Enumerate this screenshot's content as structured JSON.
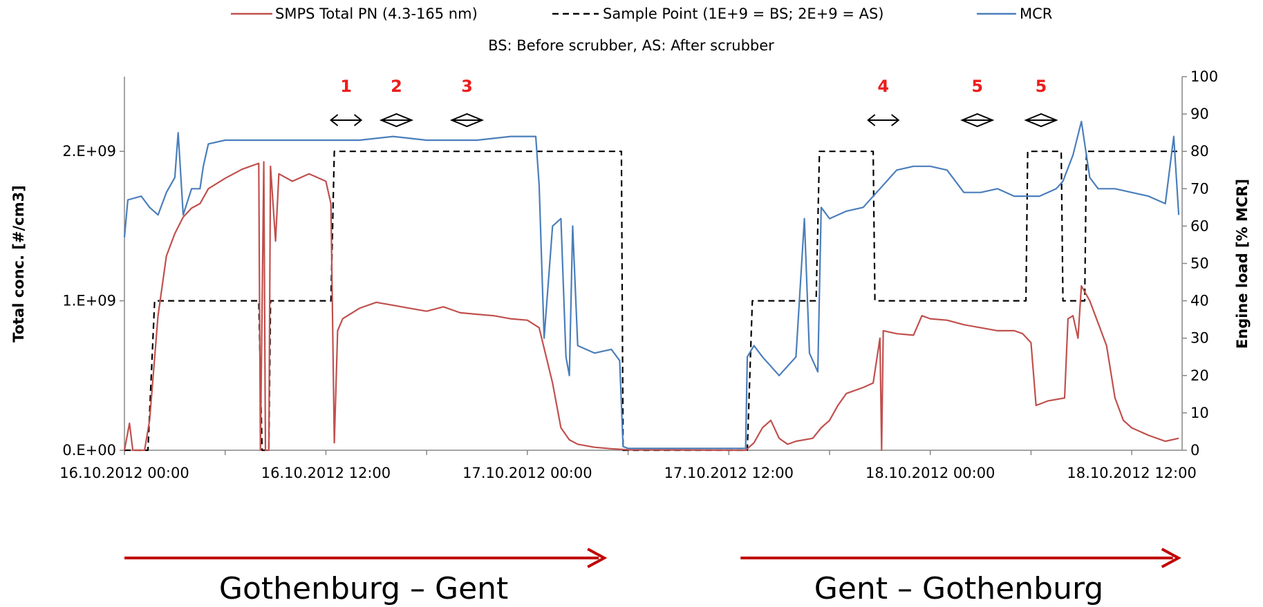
{
  "chart_data": {
    "type": "line",
    "legend": {
      "placement": "top",
      "entries": [
        {
          "label": "SMPS Total PN (4.3-165 nm)",
          "color": "#c0504d",
          "style": "solid"
        },
        {
          "label": "Sample Point (1E+9 = BS; 2E+9 = AS)",
          "color": "#000000",
          "style": "dashed"
        },
        {
          "label": "MCR",
          "color": "#4a7ebb",
          "style": "solid"
        }
      ],
      "note": "BS: Before scrubber, AS: After scrubber"
    },
    "x_axis": {
      "ticks": [
        "16.10.2012 00:00",
        "16.10.2012 12:00",
        "17.10.2012 00:00",
        "17.10.2012 12:00",
        "18.10.2012 00:00",
        "18.10.2012 12:00"
      ],
      "range_hours": [
        0,
        63
      ]
    },
    "y_left": {
      "label": "Total conc. [#/cm3]",
      "range": [
        0,
        2500000000
      ],
      "ticks": [
        {
          "value": 0,
          "label": "0.E+00"
        },
        {
          "value": 1000000000,
          "label": "1.E+09"
        },
        {
          "value": 2000000000,
          "label": "2.E+09"
        }
      ]
    },
    "y_right": {
      "label": "Engine load [% MCR]",
      "range": [
        0,
        100
      ],
      "ticks": [
        {
          "value": 0,
          "label": "0"
        },
        {
          "value": 10,
          "label": "10"
        },
        {
          "value": 20,
          "label": "20"
        },
        {
          "value": 30,
          "label": "30"
        },
        {
          "value": 40,
          "label": "40"
        },
        {
          "value": 50,
          "label": "50"
        },
        {
          "value": 60,
          "label": "60"
        },
        {
          "value": 70,
          "label": "70"
        },
        {
          "value": 80,
          "label": "80"
        },
        {
          "value": 90,
          "label": "90"
        },
        {
          "value": 100,
          "label": "100"
        }
      ]
    },
    "grid": false,
    "series": [
      {
        "name": "Sample Point (1E+9 = BS; 2E+9 = AS)",
        "axis": "left",
        "style": "dashed",
        "color": "#000000",
        "points": [
          [
            0,
            0
          ],
          [
            1.4,
            0
          ],
          [
            1.8,
            1000000000
          ],
          [
            8,
            1000000000
          ],
          [
            8.2,
            0
          ],
          [
            8.6,
            0
          ],
          [
            8.7,
            1000000000
          ],
          [
            12.3,
            1000000000
          ],
          [
            12.5,
            2000000000
          ],
          [
            29.6,
            2000000000
          ],
          [
            29.7,
            0
          ],
          [
            37.1,
            0
          ],
          [
            37.4,
            1000000000
          ],
          [
            41.2,
            1000000000
          ],
          [
            41.4,
            2000000000
          ],
          [
            44.6,
            2000000000
          ],
          [
            44.7,
            1000000000
          ],
          [
            53.7,
            1000000000
          ],
          [
            53.8,
            2000000000
          ],
          [
            55.8,
            2000000000
          ],
          [
            55.9,
            1000000000
          ],
          [
            57.2,
            1000000000
          ],
          [
            57.3,
            2000000000
          ],
          [
            62.8,
            2000000000
          ]
        ]
      },
      {
        "name": "SMPS Total PN (4.3-165 nm)",
        "axis": "left",
        "style": "solid",
        "color": "#c0504d",
        "points": [
          [
            0,
            0
          ],
          [
            0.3,
            180000000.0
          ],
          [
            0.5,
            0
          ],
          [
            1.2,
            0
          ],
          [
            1.5,
            200000000.0
          ],
          [
            2,
            900000000.0
          ],
          [
            2.5,
            1300000000.0
          ],
          [
            3,
            1450000000.0
          ],
          [
            3.5,
            1560000000.0
          ],
          [
            4,
            1620000000.0
          ],
          [
            4.5,
            1650000000.0
          ],
          [
            5,
            1750000000.0
          ],
          [
            6,
            1820000000.0
          ],
          [
            7,
            1880000000.0
          ],
          [
            8,
            1920000000.0
          ],
          [
            8.1,
            0
          ],
          [
            8.3,
            1930000000.0
          ],
          [
            8.4,
            0
          ],
          [
            8.6,
            0
          ],
          [
            8.7,
            1900000000.0
          ],
          [
            9,
            1400000000.0
          ],
          [
            9.2,
            1850000000.0
          ],
          [
            10,
            1800000000.0
          ],
          [
            11,
            1850000000.0
          ],
          [
            12,
            1800000000.0
          ],
          [
            12.3,
            1650000000.0
          ],
          [
            12.5,
            50000000.0
          ],
          [
            12.7,
            800000000.0
          ],
          [
            13,
            880000000.0
          ],
          [
            14,
            950000000.0
          ],
          [
            15,
            990000000.0
          ],
          [
            16,
            970000000.0
          ],
          [
            17,
            950000000.0
          ],
          [
            18,
            930000000.0
          ],
          [
            19,
            960000000.0
          ],
          [
            20,
            920000000.0
          ],
          [
            21,
            910000000.0
          ],
          [
            22,
            900000000.0
          ],
          [
            23,
            880000000.0
          ],
          [
            24,
            870000000.0
          ],
          [
            24.7,
            820000000.0
          ],
          [
            25.5,
            450000000.0
          ],
          [
            26,
            150000000.0
          ],
          [
            26.5,
            70000000.0
          ],
          [
            27,
            40000000.0
          ],
          [
            28,
            20000000.0
          ],
          [
            29,
            10000000.0
          ],
          [
            30,
            3000000.0
          ],
          [
            37,
            0
          ],
          [
            37.5,
            50000000.0
          ],
          [
            38,
            150000000.0
          ],
          [
            38.5,
            200000000.0
          ],
          [
            39,
            80000000.0
          ],
          [
            39.5,
            40000000.0
          ],
          [
            40,
            60000000.0
          ],
          [
            41,
            80000000.0
          ],
          [
            41.5,
            150000000.0
          ],
          [
            42,
            200000000.0
          ],
          [
            42.5,
            300000000.0
          ],
          [
            43,
            380000000.0
          ],
          [
            44,
            420000000.0
          ],
          [
            44.6,
            450000000.0
          ],
          [
            45,
            750000000.0
          ],
          [
            45.1,
            0
          ],
          [
            45.2,
            800000000.0
          ],
          [
            46,
            780000000.0
          ],
          [
            47,
            770000000.0
          ],
          [
            47.5,
            900000000.0
          ],
          [
            48,
            880000000.0
          ],
          [
            49,
            870000000.0
          ],
          [
            50,
            840000000.0
          ],
          [
            51,
            820000000.0
          ],
          [
            52,
            800000000.0
          ],
          [
            53,
            800000000.0
          ],
          [
            53.5,
            780000000.0
          ],
          [
            54,
            720000000.0
          ],
          [
            54.3,
            300000000.0
          ],
          [
            55,
            330000000.0
          ],
          [
            56,
            350000000.0
          ],
          [
            56.2,
            880000000.0
          ],
          [
            56.5,
            900000000.0
          ],
          [
            56.8,
            750000000.0
          ],
          [
            57,
            1100000000.0
          ],
          [
            57.5,
            1000000000.0
          ],
          [
            58,
            850000000.0
          ],
          [
            58.5,
            700000000.0
          ],
          [
            59,
            350000000.0
          ],
          [
            59.5,
            200000000.0
          ],
          [
            60,
            150000000.0
          ],
          [
            61,
            100000000.0
          ],
          [
            62,
            60000000.0
          ],
          [
            62.8,
            80000000.0
          ]
        ]
      },
      {
        "name": "MCR",
        "axis": "right",
        "style": "solid",
        "color": "#4a7ebb",
        "points": [
          [
            0,
            57
          ],
          [
            0.2,
            67
          ],
          [
            1,
            68
          ],
          [
            1.5,
            65
          ],
          [
            2,
            63
          ],
          [
            2.5,
            69
          ],
          [
            3,
            73
          ],
          [
            3.2,
            85
          ],
          [
            3.5,
            63
          ],
          [
            4,
            70
          ],
          [
            4.5,
            70
          ],
          [
            4.7,
            76
          ],
          [
            5,
            82
          ],
          [
            6,
            83
          ],
          [
            8,
            83
          ],
          [
            10,
            83
          ],
          [
            12,
            83
          ],
          [
            14,
            83
          ],
          [
            16,
            84
          ],
          [
            18,
            83
          ],
          [
            20,
            83
          ],
          [
            21,
            83
          ],
          [
            23,
            84
          ],
          [
            24.5,
            84
          ],
          [
            24.7,
            71
          ],
          [
            25,
            30
          ],
          [
            25.5,
            60
          ],
          [
            26,
            62
          ],
          [
            26.3,
            25
          ],
          [
            26.5,
            20
          ],
          [
            26.7,
            60
          ],
          [
            27,
            28
          ],
          [
            28,
            26
          ],
          [
            29,
            27
          ],
          [
            29.5,
            24
          ],
          [
            29.7,
            1
          ],
          [
            30,
            0.5
          ],
          [
            37,
            0.5
          ],
          [
            37.1,
            25
          ],
          [
            37.5,
            28
          ],
          [
            38,
            25
          ],
          [
            39,
            20
          ],
          [
            40,
            25
          ],
          [
            40.5,
            62
          ],
          [
            40.8,
            26
          ],
          [
            41.3,
            21
          ],
          [
            41.5,
            65
          ],
          [
            42,
            62
          ],
          [
            43,
            64
          ],
          [
            44,
            65
          ],
          [
            45,
            70
          ],
          [
            46,
            75
          ],
          [
            47,
            76
          ],
          [
            48,
            76
          ],
          [
            49,
            75
          ],
          [
            50,
            69
          ],
          [
            51,
            69
          ],
          [
            52,
            70
          ],
          [
            53,
            68
          ],
          [
            54,
            68
          ],
          [
            54.5,
            68
          ],
          [
            55,
            69
          ],
          [
            55.5,
            70
          ],
          [
            55.9,
            72
          ],
          [
            56.5,
            79
          ],
          [
            57,
            88
          ],
          [
            57.5,
            73
          ],
          [
            58,
            70
          ],
          [
            59,
            70
          ],
          [
            60,
            69
          ],
          [
            61,
            68
          ],
          [
            62,
            66
          ],
          [
            62.5,
            84
          ],
          [
            62.8,
            63
          ]
        ]
      }
    ],
    "annotations": [
      {
        "label": "1",
        "x_hours": 13.2,
        "arrow_type": "double-arrow"
      },
      {
        "label": "2",
        "x_hours": 16.2,
        "arrow_type": "diamond"
      },
      {
        "label": "3",
        "x_hours": 20.4,
        "arrow_type": "diamond"
      },
      {
        "label": "4",
        "x_hours": 45.2,
        "arrow_type": "double-arrow"
      },
      {
        "label": "5",
        "x_hours": 50.8,
        "arrow_type": "diamond"
      },
      {
        "label": "5",
        "x_hours": 54.6,
        "arrow_type": "diamond"
      }
    ],
    "routes": [
      {
        "label": "Gothenburg – Gent",
        "x_range_hours": [
          0,
          28.5
        ],
        "color": "#c00000"
      },
      {
        "label": "Gent – Gothenburg",
        "x_range_hours": [
          36.7,
          62.7
        ],
        "color": "#c00000"
      }
    ]
  }
}
